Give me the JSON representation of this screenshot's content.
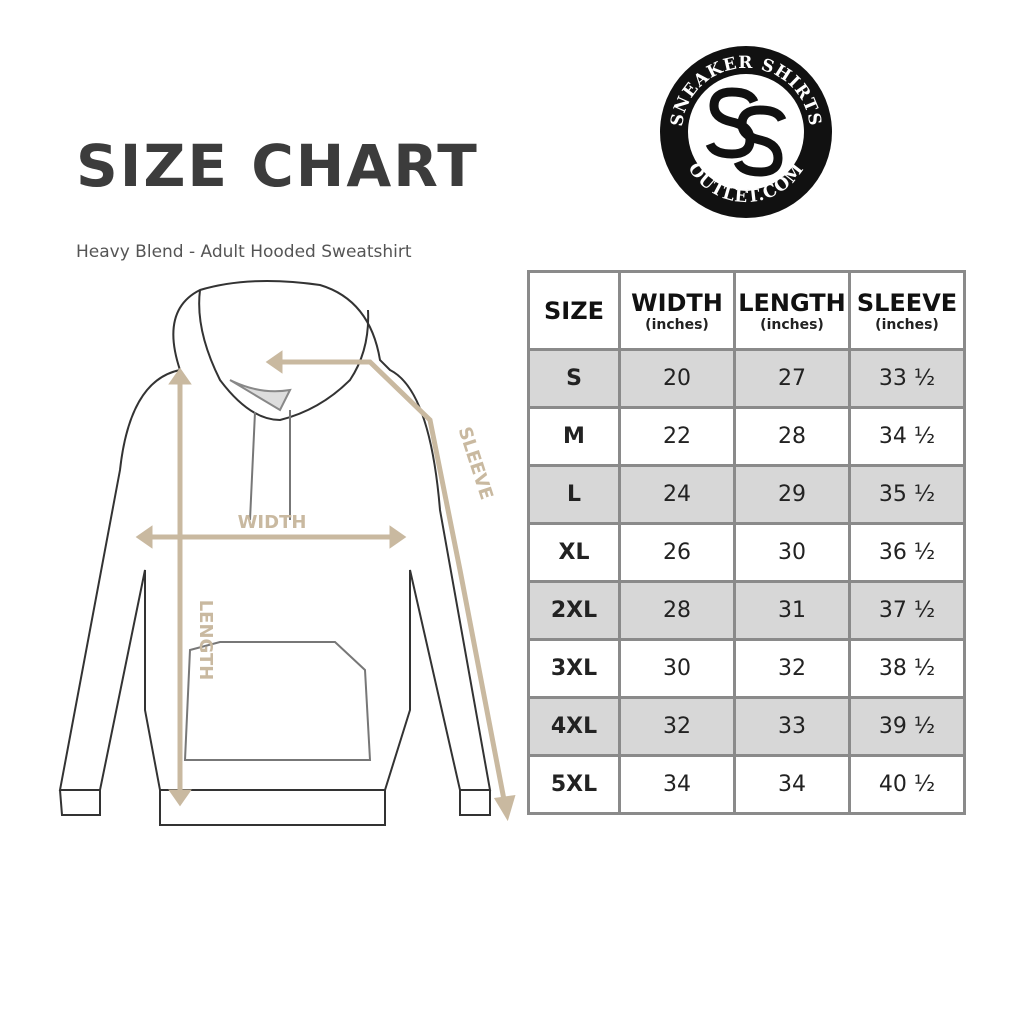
{
  "title": "SIZE CHART",
  "subtitle": "Heavy Blend - Adult Hooded Sweatshirt",
  "logo": {
    "text_top": "SNEAKER SHIRTS",
    "text_bottom": "OUTLET.COM",
    "monogram": "SS"
  },
  "diagram_labels": {
    "width": "WIDTH",
    "length": "LENGTH",
    "sleeve": "SLEEVE"
  },
  "colors": {
    "accent": "#c9b9a0",
    "row_shade": "#d7d7d7",
    "border": "#8a8a8a"
  },
  "table": {
    "headers": [
      {
        "label": "SIZE",
        "unit": ""
      },
      {
        "label": "WIDTH",
        "unit": "(inches)"
      },
      {
        "label": "LENGTH",
        "unit": "(inches)"
      },
      {
        "label": "SLEEVE",
        "unit": "(inches)"
      }
    ],
    "rows": [
      [
        "S",
        "20",
        "27",
        "33 ½"
      ],
      [
        "M",
        "22",
        "28",
        "34 ½"
      ],
      [
        "L",
        "24",
        "29",
        "35 ½"
      ],
      [
        "XL",
        "26",
        "30",
        "36 ½"
      ],
      [
        "2XL",
        "28",
        "31",
        "37 ½"
      ],
      [
        "3XL",
        "30",
        "32",
        "38 ½"
      ],
      [
        "4XL",
        "32",
        "33",
        "39 ½"
      ],
      [
        "5XL",
        "34",
        "34",
        "40 ½"
      ]
    ]
  }
}
